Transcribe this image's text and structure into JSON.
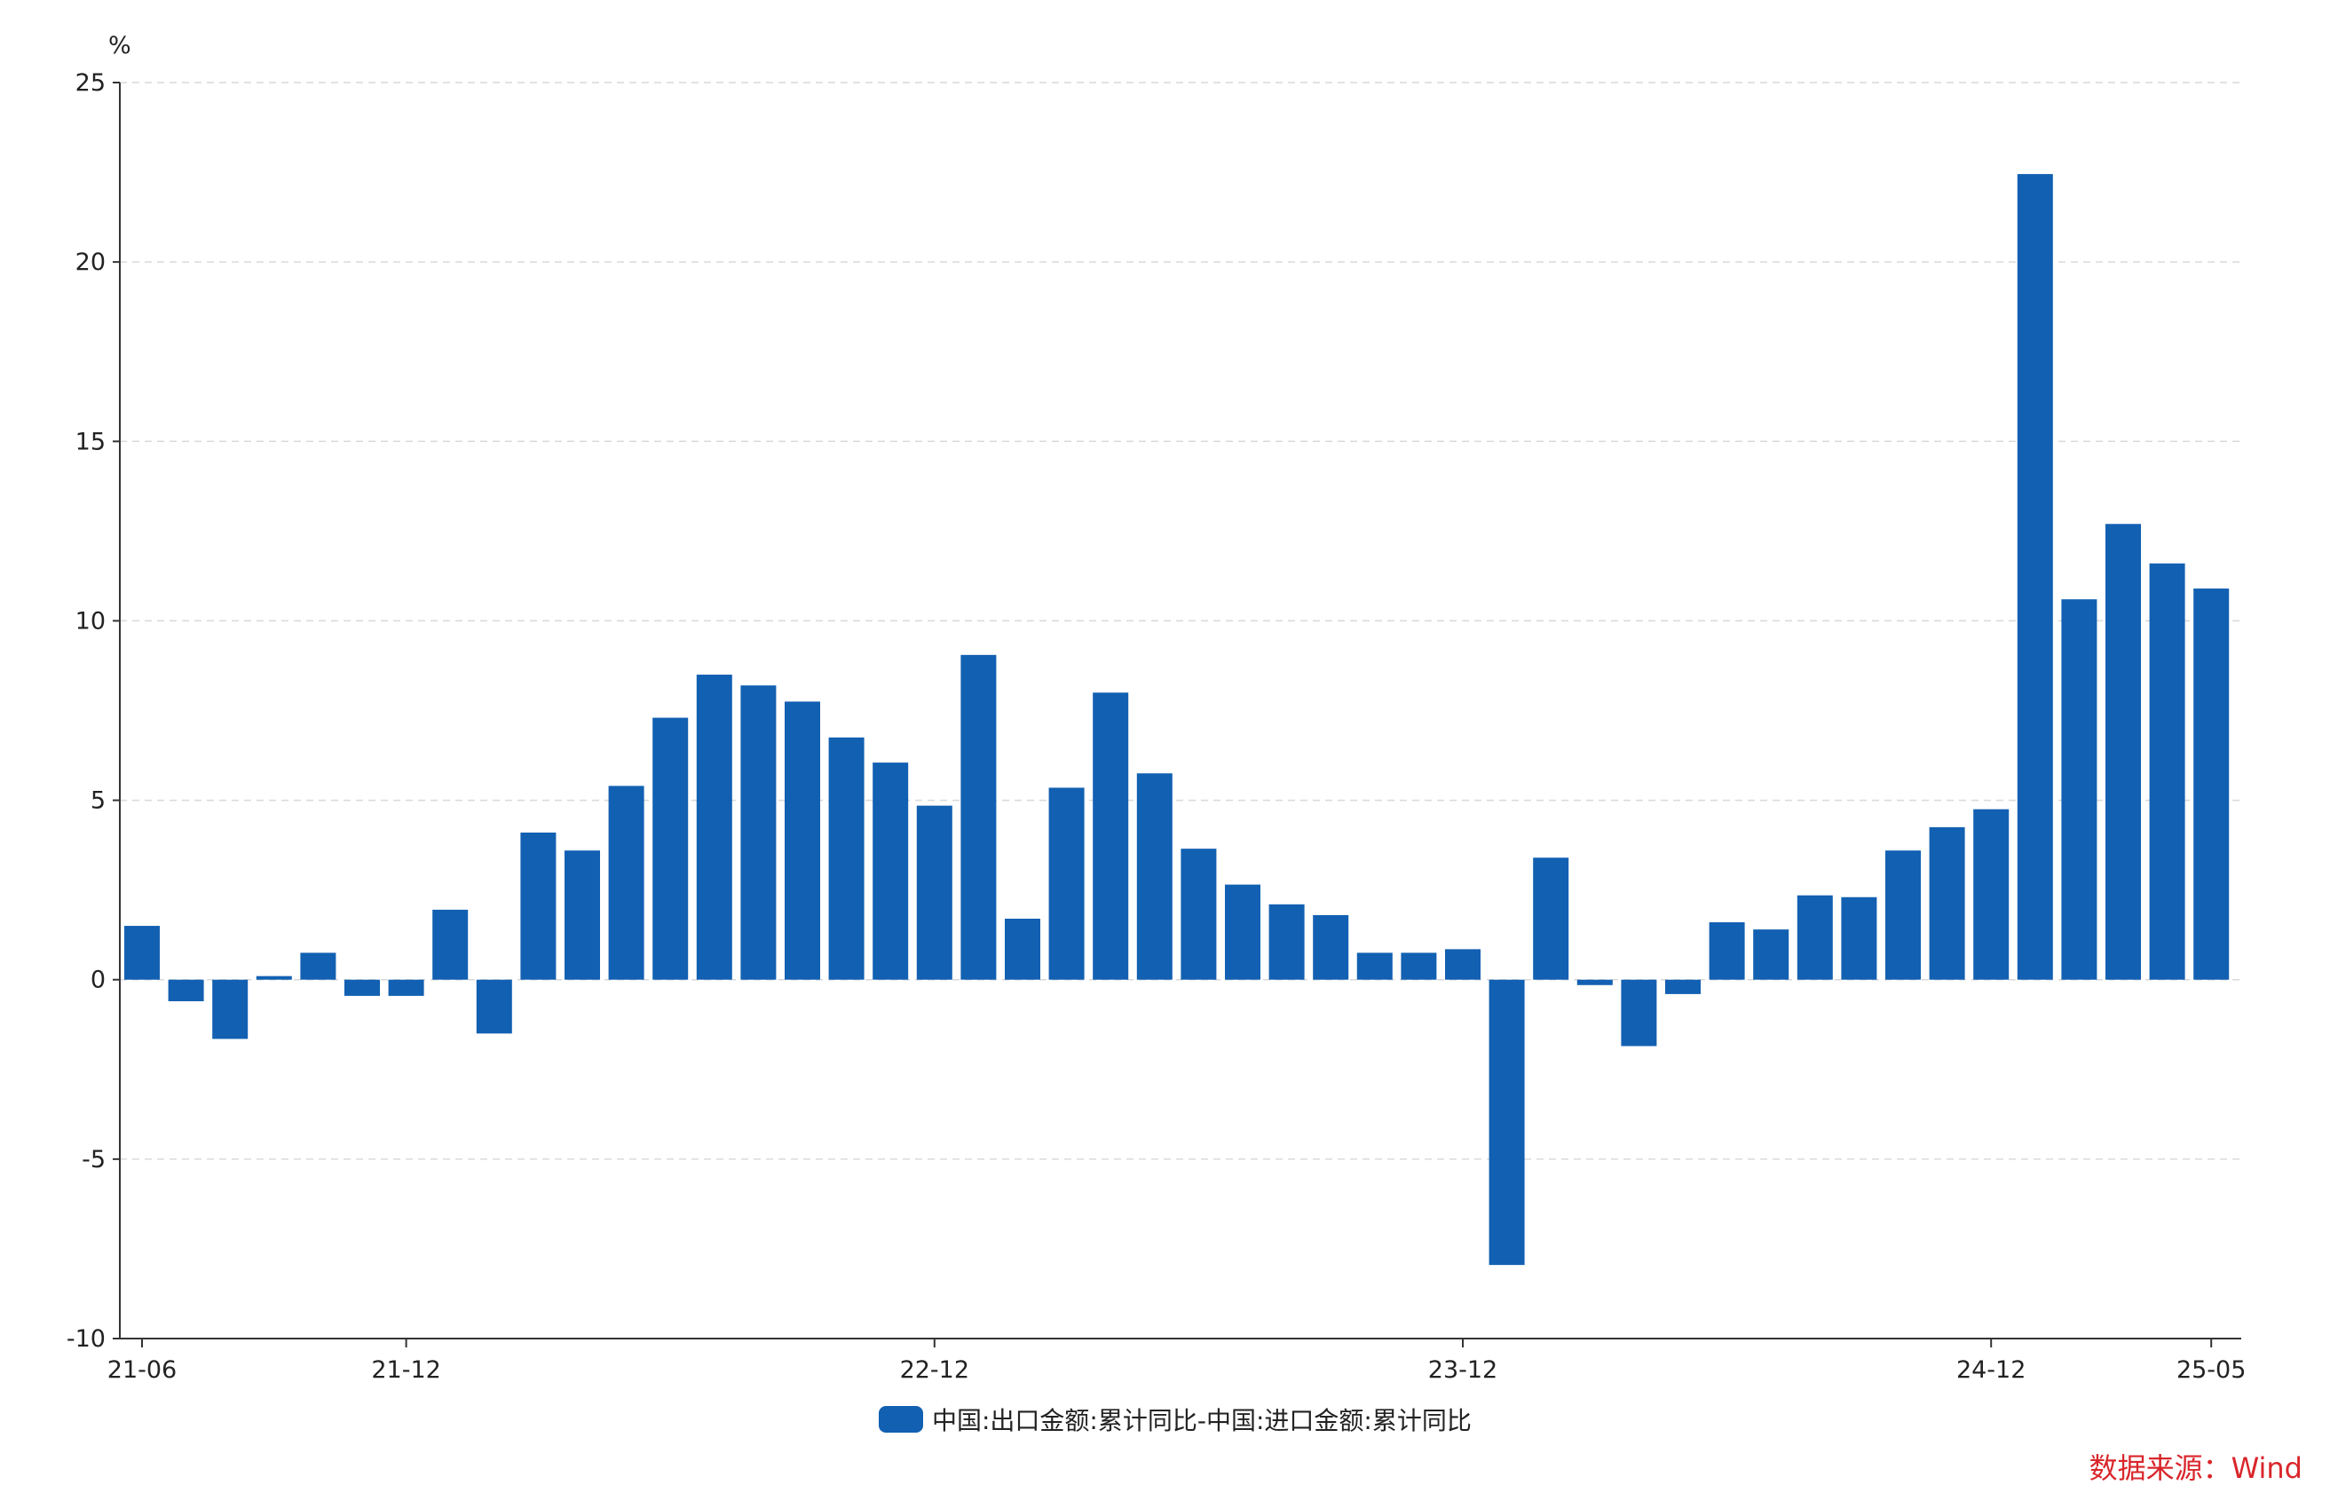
{
  "chart_data": {
    "type": "bar",
    "unit": "%",
    "categories": [
      "21-06",
      "21-07",
      "21-08",
      "21-09",
      "21-10",
      "21-11",
      "21-12",
      "22-01",
      "22-02",
      "22-03",
      "22-04",
      "22-05",
      "22-06",
      "22-07",
      "22-08",
      "22-09",
      "22-10",
      "22-11",
      "22-12",
      "23-01",
      "23-02",
      "23-03",
      "23-04",
      "23-05",
      "23-06",
      "23-07",
      "23-08",
      "23-09",
      "23-10",
      "23-11",
      "23-12",
      "24-01",
      "24-02",
      "24-03",
      "24-04",
      "24-05",
      "24-06",
      "24-07",
      "24-08",
      "24-09",
      "24-10",
      "24-11",
      "24-12",
      "25-01",
      "25-02",
      "25-03",
      "25-04",
      "25-05"
    ],
    "x_tick_labels": [
      "21-06",
      "21-12",
      "22-12",
      "23-12",
      "24-12",
      "25-05"
    ],
    "series": [
      {
        "name": "中国:出口金额:累计同比-中国:进口金额:累计同比",
        "color": "#1260b2",
        "values": [
          1.5,
          -0.6,
          -1.65,
          0.1,
          0.75,
          -0.45,
          -0.45,
          1.95,
          -1.5,
          4.1,
          3.6,
          5.4,
          7.3,
          8.5,
          8.2,
          7.75,
          6.75,
          6.05,
          4.85,
          9.05,
          1.7,
          5.35,
          8.0,
          5.75,
          3.65,
          2.65,
          2.1,
          1.8,
          0.75,
          0.75,
          0.85,
          -7.95,
          3.4,
          -0.15,
          -1.85,
          -0.4,
          1.6,
          1.4,
          2.35,
          2.3,
          3.6,
          4.25,
          4.75,
          22.45,
          10.6,
          12.7,
          11.6,
          10.9
        ]
      }
    ],
    "ylim": [
      -10,
      25
    ],
    "yticks": [
      25,
      20,
      15,
      10,
      5,
      0,
      -5,
      -10
    ],
    "grid": true,
    "legend_position": "bottom-center",
    "source": "数据来源：Wind"
  }
}
